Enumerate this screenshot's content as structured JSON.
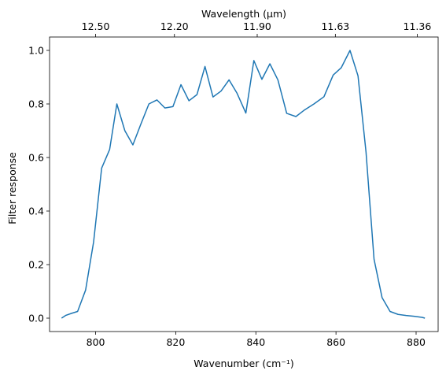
{
  "chart_data": {
    "type": "line",
    "title": "",
    "xlabel": "Wavenumber (cm⁻¹)",
    "ylabel": "Filter response",
    "top_xlabel": "Wavelength (μm)",
    "xlim": [
      788.5,
      885.5
    ],
    "ylim": [
      -0.05,
      1.05
    ],
    "x_ticks": [
      {
        "value": 800,
        "label": "800"
      },
      {
        "value": 820,
        "label": "820"
      },
      {
        "value": 840,
        "label": "840"
      },
      {
        "value": 860,
        "label": "860"
      },
      {
        "value": 880,
        "label": "880"
      }
    ],
    "y_ticks": [
      {
        "value": 0.0,
        "label": "0.0"
      },
      {
        "value": 0.2,
        "label": "0.2"
      },
      {
        "value": 0.4,
        "label": "0.4"
      },
      {
        "value": 0.6,
        "label": "0.6"
      },
      {
        "value": 0.8,
        "label": "0.8"
      },
      {
        "value": 1.0,
        "label": "1.0"
      }
    ],
    "top_x_ticks": [
      {
        "wavelength": 12.5,
        "label": "12.50"
      },
      {
        "wavelength": 12.2,
        "label": "12.20"
      },
      {
        "wavelength": 11.9,
        "label": "11.90"
      },
      {
        "wavelength": 11.63,
        "label": "11.63"
      },
      {
        "wavelength": 11.36,
        "label": "11.36"
      }
    ],
    "grid": false,
    "series": [
      {
        "color": "#1f77b4",
        "x": [
          791.5,
          792.5,
          794,
          795.5,
          797.5,
          799.5,
          801.5,
          803.5,
          805.3,
          807.3,
          809.3,
          811.3,
          813.3,
          815.3,
          817.3,
          819.3,
          821.3,
          823.3,
          825.3,
          827.3,
          829.3,
          831.3,
          833.3,
          835.3,
          837.5,
          839.5,
          841.5,
          843.5,
          845.5,
          847.7,
          850,
          852,
          854.5,
          857,
          859.3,
          861.3,
          863.5,
          865.5,
          867.5,
          869.5,
          871.5,
          873.5,
          875.5,
          877.5,
          879.5,
          881.5,
          882.2
        ],
        "values": [
          0.0,
          0.01,
          0.018,
          0.025,
          0.105,
          0.285,
          0.56,
          0.63,
          0.8,
          0.7,
          0.647,
          0.725,
          0.8,
          0.815,
          0.785,
          0.79,
          0.872,
          0.812,
          0.835,
          0.94,
          0.826,
          0.848,
          0.89,
          0.84,
          0.766,
          0.962,
          0.892,
          0.95,
          0.89,
          0.765,
          0.753,
          0.776,
          0.8,
          0.827,
          0.908,
          0.935,
          1.0,
          0.905,
          0.62,
          0.22,
          0.077,
          0.025,
          0.014,
          0.01,
          0.007,
          0.003,
          0.0
        ]
      }
    ]
  }
}
